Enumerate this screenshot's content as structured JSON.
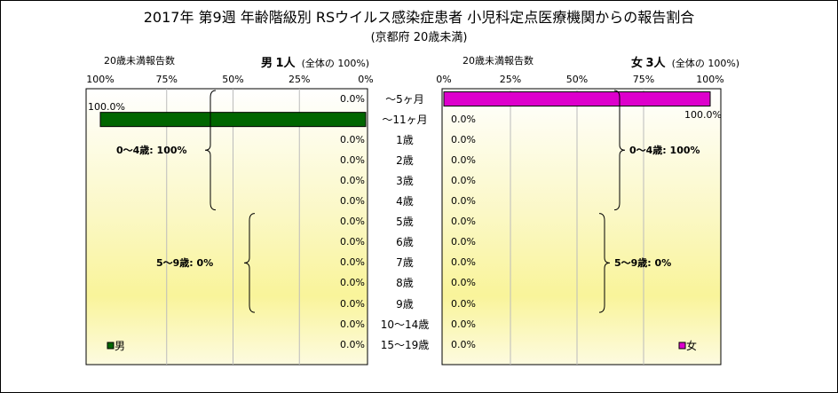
{
  "title": "2017年 第9週 年齢階級別 RSウイルス感染症患者 小児科定点医療機関からの報告割合",
  "subtitle": "(京都府 20歳未満)",
  "chart_data": [
    {
      "type": "bar",
      "orientation": "horizontal",
      "direction": "right-to-left",
      "side": "male",
      "header_left": "20歳未満報告数",
      "header_sex": "男",
      "header_count": "1人",
      "header_note": "(全体の  100%)",
      "xticks": [
        "100%",
        "75%",
        "50%",
        "25%",
        "0%"
      ],
      "xlim": [
        100,
        0
      ],
      "categories": [
        "～5ヶ月",
        "～11ヶ月",
        "1歳",
        "2歳",
        "3歳",
        "4歳",
        "5歳",
        "6歳",
        "7歳",
        "8歳",
        "9歳",
        "10～14歳",
        "15～19歳"
      ],
      "series": [
        {
          "name": "男",
          "color": "#006600",
          "values": [
            0,
            100,
            0,
            0,
            0,
            0,
            0,
            0,
            0,
            0,
            0,
            0,
            0
          ],
          "labels": [
            "0.0%",
            "100.0%",
            "0.0%",
            "0.0%",
            "0.0%",
            "0.0%",
            "0.0%",
            "0.0%",
            "0.0%",
            "0.0%",
            "0.0%",
            "0.0%",
            "0.0%"
          ]
        }
      ],
      "groups": [
        {
          "label": "0～4歳: 100%",
          "from": "～5ヶ月",
          "to": "4歳"
        },
        {
          "label": "5～9歳: 0%",
          "from": "5歳",
          "to": "9歳"
        }
      ],
      "legend": "bottom-left"
    },
    {
      "type": "bar",
      "orientation": "horizontal",
      "direction": "left-to-right",
      "side": "female",
      "header_left": "20歳未満報告数",
      "header_sex": "女",
      "header_count": "3人",
      "header_note": "(全体の  100%)",
      "xticks": [
        "0%",
        "25%",
        "50%",
        "75%",
        "100%"
      ],
      "xlim": [
        0,
        100
      ],
      "categories": [
        "～5ヶ月",
        "～11ヶ月",
        "1歳",
        "2歳",
        "3歳",
        "4歳",
        "5歳",
        "6歳",
        "7歳",
        "8歳",
        "9歳",
        "10～14歳",
        "15～19歳"
      ],
      "series": [
        {
          "name": "女",
          "color": "#dd00cc",
          "values": [
            100,
            0,
            0,
            0,
            0,
            0,
            0,
            0,
            0,
            0,
            0,
            0,
            0
          ],
          "labels": [
            "100.0%",
            "0.0%",
            "0.0%",
            "0.0%",
            "0.0%",
            "0.0%",
            "0.0%",
            "0.0%",
            "0.0%",
            "0.0%",
            "0.0%",
            "0.0%",
            "0.0%"
          ]
        }
      ],
      "groups": [
        {
          "label": "0～4歳: 100%",
          "from": "～5ヶ月",
          "to": "4歳"
        },
        {
          "label": "5～9歳: 0%",
          "from": "5歳",
          "to": "9歳"
        }
      ],
      "legend": "bottom-right"
    }
  ]
}
